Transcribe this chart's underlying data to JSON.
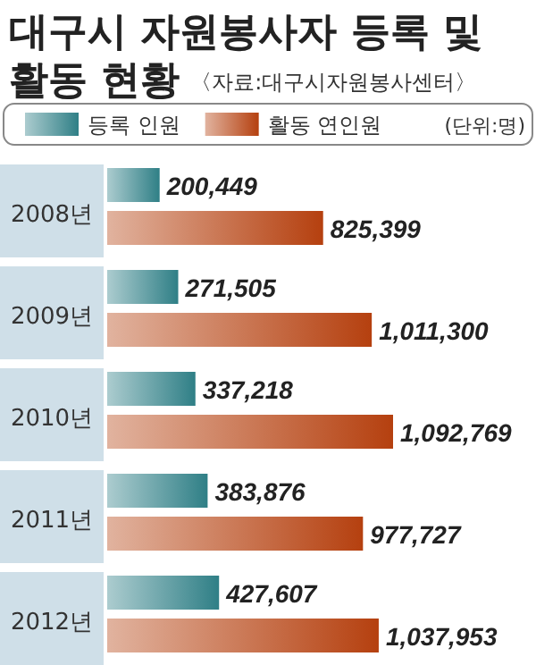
{
  "chart_data": {
    "type": "bar",
    "orientation": "horizontal",
    "title": "대구시 자원봉사자 등록 및 활동 현황",
    "annotations": [
      "〈자료:대구시자원봉사센터〉",
      "(단위:명)"
    ],
    "categories": [
      "2008년",
      "2009년",
      "2010년",
      "2011년",
      "2012년"
    ],
    "series": [
      {
        "name": "등록 인원",
        "color": "#2f7f86",
        "values": [
          200449,
          271505,
          337218,
          383876,
          427607
        ],
        "value_labels": [
          "200,449",
          "271,505",
          "337,218",
          "383,876",
          "427,607"
        ]
      },
      {
        "name": "활동 연인원",
        "color": "#b5400f",
        "values": [
          825399,
          1011300,
          1092769,
          977727,
          1037953
        ],
        "value_labels": [
          "825,399",
          "1,011,300",
          "1,092,769",
          "977,727",
          "1,037,953"
        ]
      }
    ],
    "legend": "top"
  }
}
